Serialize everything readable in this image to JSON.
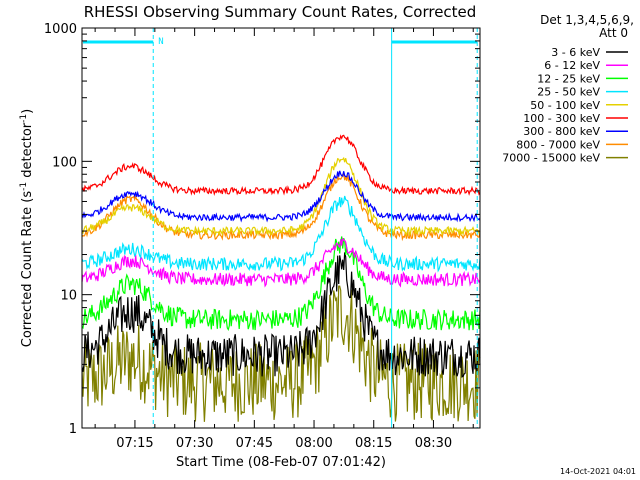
{
  "chart_data": {
    "type": "line",
    "title": "RHESSI Observing Summary Count Rates, Corrected",
    "xlabel": "Start Time (08-Feb-07 07:01:42)",
    "ylabel_main": "Corrected Count Rate (s",
    "ylabel_sup1": "-1",
    "ylabel_mid": " detector",
    "ylabel_sup2": "-1",
    "ylabel_end": ")",
    "y_scale": "log",
    "ylim": [
      1,
      1000
    ],
    "xlim_minutes": [
      421.7,
      521.7
    ],
    "x_tick_labels": [
      "07:15",
      "07:30",
      "07:45",
      "08:00",
      "08:15",
      "08:30"
    ],
    "x_tick_minutes": [
      435,
      450,
      465,
      480,
      495,
      510
    ],
    "y_tick_labels": [
      "1",
      "10",
      "100",
      "1000"
    ],
    "y_tick_values": [
      1,
      10,
      100,
      1000
    ],
    "night_start_minutes": 439.6,
    "night_end_minutes": 499.5,
    "night_marker_label": "N",
    "detectors_text": "Det 1,3,4,5,6,9,",
    "attenuator_text": "Att 0",
    "timestamp": "14-Oct-2021 04:01",
    "peak_minutes": [
      434,
      487
    ],
    "series": [
      {
        "name": "3 - 6 keV",
        "color": "#000000",
        "base": 3.5,
        "peaks": [
          7.5,
          15
        ],
        "noise": 0.16
      },
      {
        "name": "6 - 12 keV",
        "color": "#ff00ff",
        "base": 13,
        "peaks": [
          18,
          24
        ],
        "noise": 0.05
      },
      {
        "name": "12 - 25 keV",
        "color": "#00ff00",
        "base": 6.5,
        "peaks": [
          12,
          24
        ],
        "noise": 0.08
      },
      {
        "name": "25 - 50 keV",
        "color": "#00e5ff",
        "base": 17,
        "peaks": [
          22,
          50
        ],
        "noise": 0.05
      },
      {
        "name": "50 - 100 keV",
        "color": "#e5d000",
        "base": 30,
        "peaks": [
          45,
          105
        ],
        "noise": 0.03
      },
      {
        "name": "100 - 300 keV",
        "color": "#ff0000",
        "base": 60,
        "peaks": [
          92,
          155
        ],
        "noise": 0.025
      },
      {
        "name": "300 - 800 keV",
        "color": "#0000ff",
        "base": 38,
        "peaks": [
          58,
          82
        ],
        "noise": 0.025
      },
      {
        "name": "800 - 7000 keV",
        "color": "#ff8c00",
        "base": 28,
        "peaks": [
          52,
          78
        ],
        "noise": 0.03
      },
      {
        "name": "7000 - 15000 keV",
        "color": "#808000",
        "base": 2.2,
        "peaks": [
          3.3,
          7.5
        ],
        "noise": 0.3
      }
    ]
  }
}
